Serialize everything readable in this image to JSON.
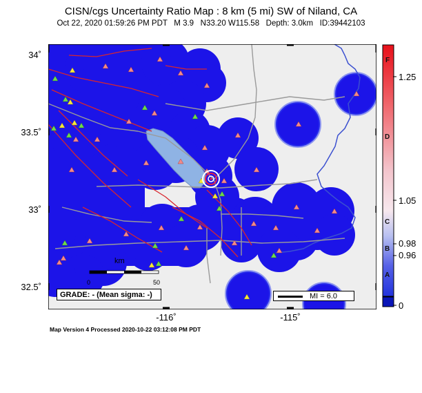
{
  "header": {
    "title": "CISN/cgs Uncertainty Ratio Map : 8 km (5 mi) SW of Niland, CA",
    "subtitle": "Oct 22, 2020 01:59:26 PM PDT   M 3.9   N33.20 W115.58   Depth: 3.0km   ID:39442103"
  },
  "axes": {
    "lat_ticks": [
      "34˚",
      "33.5˚",
      "33˚",
      "32.5˚"
    ],
    "lon_ticks": [
      "-116˚",
      "-115˚"
    ]
  },
  "colorbar": {
    "value_labels": [
      "1.25",
      "1.05",
      "0.98",
      "0.96",
      "0"
    ],
    "letters": [
      "F",
      "D",
      "C",
      "B",
      "A"
    ],
    "colors": {
      "top": "#e8101a",
      "mid": "#f7e8ee",
      "low": "#2233dd",
      "bottom": "#0a16b8"
    }
  },
  "legend": {
    "grade": "GRADE: - (Mean sigma: -)",
    "mi": "MI = 6.0",
    "scale_title": "km",
    "scale_zero": "0",
    "scale_end": "50"
  },
  "footer": "Map Version 4 Processed 2020-10-22 03:12:08 PM PDT",
  "colors": {
    "field": "#1c14e8",
    "land": "#eeeeee",
    "lake": "#8fb3e4",
    "fault": "#d8262e",
    "road": "#9a9a9a",
    "border": "#3b50d0"
  }
}
